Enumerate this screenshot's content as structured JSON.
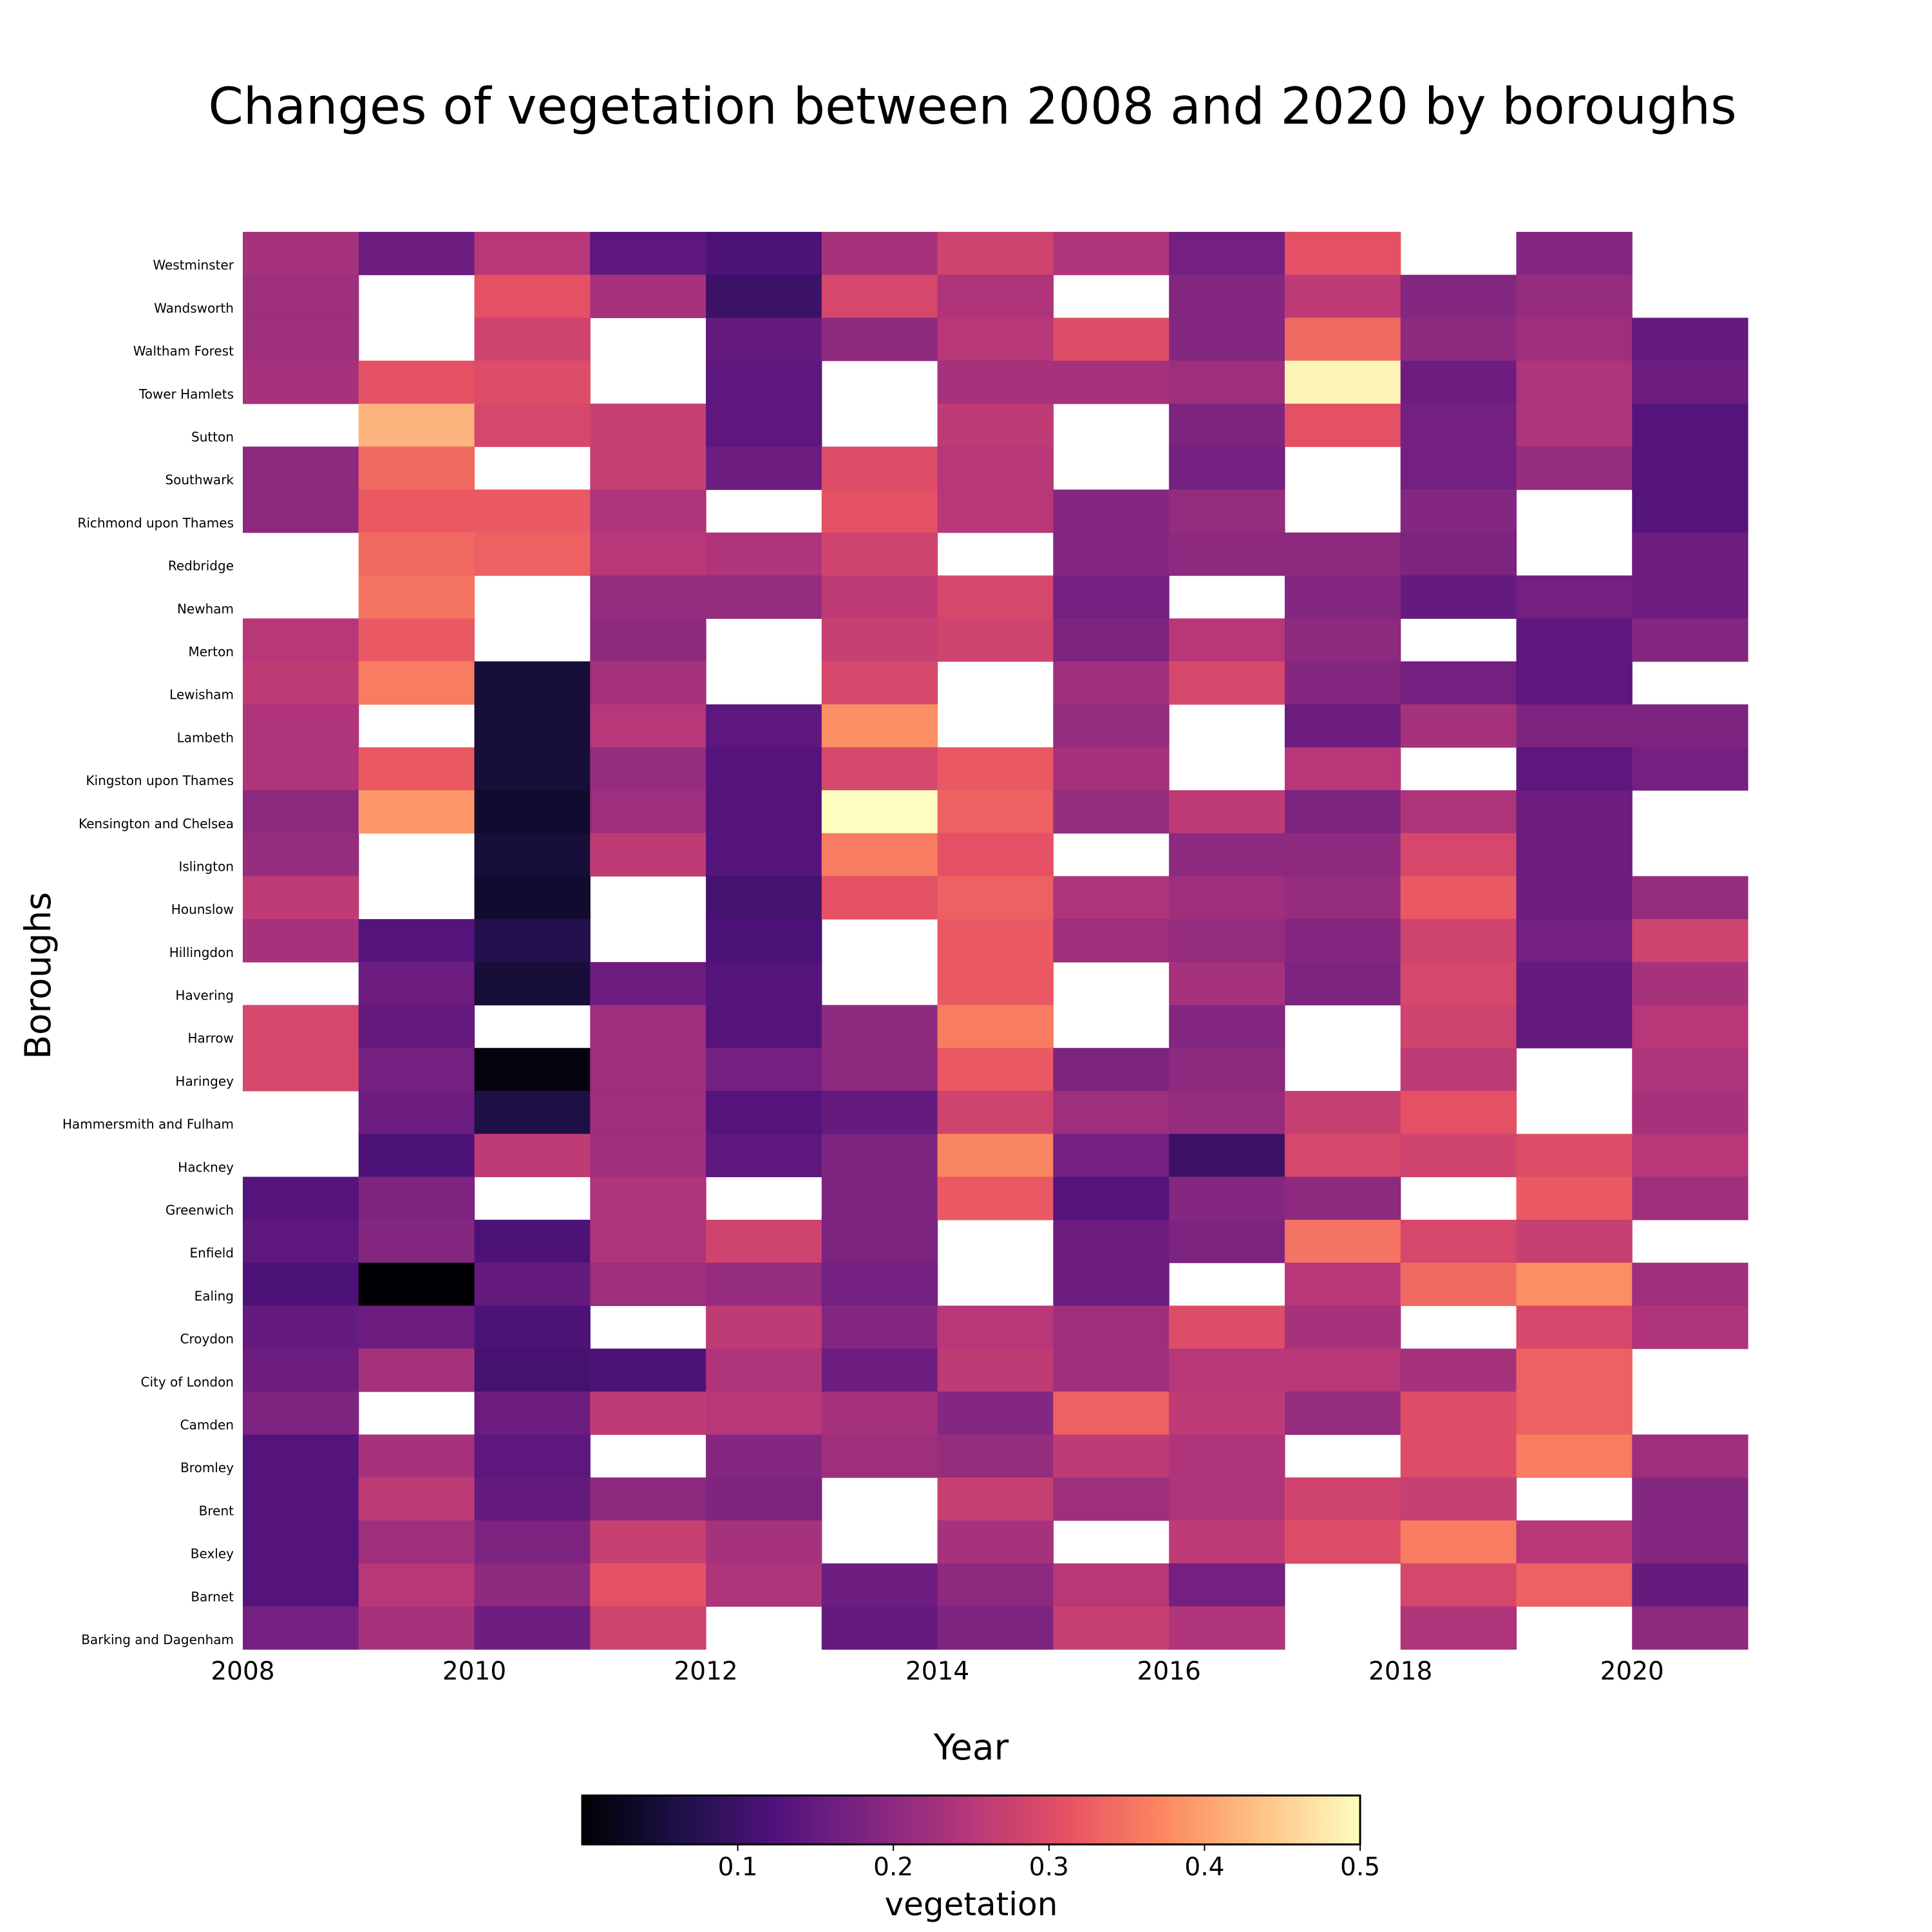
{
  "chart_data": {
    "type": "heatmap",
    "title": "Changes of vegetation between 2008 and 2020 by boroughs",
    "xlabel": "Year",
    "ylabel": "Boroughs",
    "x": [
      2008,
      2009,
      2010,
      2011,
      2012,
      2013,
      2014,
      2015,
      2016,
      2017,
      2018,
      2019,
      2020
    ],
    "x_ticks": [
      "2008",
      "2010",
      "2012",
      "2014",
      "2016",
      "2018",
      "2020"
    ],
    "rows": [
      "Westminster",
      "Wandsworth",
      "Waltham Forest",
      "Tower Hamlets",
      "Sutton",
      "Southwark",
      "Richmond upon Thames",
      "Redbridge",
      "Newham",
      "Merton",
      "Lewisham",
      "Lambeth",
      "Kingston upon Thames",
      "Kensington and Chelsea",
      "Islington",
      "Hounslow",
      "Hillingdon",
      "Havering",
      "Harrow",
      "Haringey",
      "Hammersmith and Fulham",
      "Hackney",
      "Greenwich",
      "Enfield",
      "Ealing",
      "Croydon",
      "City of London",
      "Camden",
      "Bromley",
      "Brent",
      "Bexley",
      "Barnet",
      "Barking and Dagenham"
    ],
    "values": [
      [
        0.23,
        0.16,
        0.25,
        0.14,
        0.12,
        0.23,
        0.28,
        0.24,
        0.17,
        0.31,
        null,
        0.19,
        null
      ],
      [
        0.22,
        null,
        0.31,
        0.23,
        0.1,
        0.29,
        0.24,
        null,
        0.19,
        0.26,
        0.19,
        0.21,
        null
      ],
      [
        0.22,
        null,
        0.28,
        null,
        0.15,
        0.2,
        0.25,
        0.3,
        0.19,
        0.34,
        0.2,
        0.22,
        0.15
      ],
      [
        0.23,
        0.31,
        0.3,
        null,
        0.14,
        null,
        0.23,
        0.23,
        0.22,
        0.49,
        0.16,
        0.24,
        0.16
      ],
      [
        null,
        0.42,
        0.29,
        0.27,
        0.14,
        null,
        0.26,
        null,
        0.18,
        0.31,
        0.17,
        0.24,
        0.13
      ],
      [
        0.2,
        0.34,
        null,
        0.27,
        0.16,
        0.3,
        0.25,
        null,
        0.17,
        null,
        0.17,
        0.21,
        0.13
      ],
      [
        0.2,
        0.32,
        0.32,
        0.24,
        null,
        0.31,
        0.25,
        0.19,
        0.21,
        null,
        0.19,
        null,
        0.13
      ],
      [
        null,
        0.34,
        0.33,
        0.25,
        0.24,
        0.28,
        null,
        0.19,
        0.2,
        0.2,
        0.18,
        null,
        0.16
      ],
      [
        null,
        0.35,
        null,
        0.21,
        0.21,
        0.26,
        0.29,
        0.17,
        null,
        0.19,
        0.15,
        0.17,
        0.16
      ],
      [
        0.25,
        0.32,
        null,
        0.2,
        null,
        0.27,
        0.28,
        0.18,
        0.25,
        0.2,
        null,
        0.14,
        0.19
      ],
      [
        0.26,
        0.36,
        0.05,
        0.23,
        null,
        0.29,
        null,
        0.22,
        0.29,
        0.19,
        0.17,
        0.14,
        null
      ],
      [
        0.24,
        null,
        0.05,
        0.25,
        0.14,
        0.38,
        null,
        0.21,
        null,
        0.16,
        0.23,
        0.18,
        0.18
      ],
      [
        0.24,
        0.32,
        0.05,
        0.21,
        0.13,
        0.29,
        0.32,
        0.23,
        null,
        0.25,
        null,
        0.14,
        0.17
      ],
      [
        0.2,
        0.39,
        0.04,
        0.22,
        0.13,
        0.5,
        0.33,
        0.21,
        0.26,
        0.18,
        0.24,
        0.16,
        null
      ],
      [
        0.21,
        null,
        0.05,
        0.26,
        0.13,
        0.36,
        0.31,
        null,
        0.2,
        0.2,
        0.29,
        0.16,
        null
      ],
      [
        0.26,
        null,
        0.04,
        null,
        0.11,
        0.31,
        0.33,
        0.24,
        0.22,
        0.21,
        0.32,
        0.16,
        0.21
      ],
      [
        0.23,
        0.13,
        0.07,
        null,
        0.12,
        null,
        0.32,
        0.22,
        0.21,
        0.19,
        0.28,
        0.17,
        0.28
      ],
      [
        null,
        0.16,
        0.05,
        0.16,
        0.13,
        null,
        0.32,
        null,
        0.23,
        0.18,
        0.29,
        0.15,
        0.23
      ],
      [
        0.29,
        0.15,
        null,
        0.22,
        0.13,
        0.2,
        0.36,
        null,
        0.19,
        null,
        0.28,
        0.15,
        0.25
      ],
      [
        0.29,
        0.17,
        0.01,
        0.22,
        0.17,
        0.2,
        0.32,
        0.18,
        0.2,
        null,
        0.26,
        null,
        0.24
      ],
      [
        null,
        0.16,
        0.06,
        0.22,
        0.13,
        0.15,
        0.28,
        0.22,
        0.21,
        0.27,
        0.31,
        null,
        0.23
      ],
      [
        null,
        0.12,
        0.26,
        0.22,
        0.14,
        0.18,
        0.37,
        0.17,
        0.1,
        0.29,
        0.28,
        0.3,
        0.25
      ],
      [
        0.13,
        0.18,
        null,
        0.24,
        null,
        0.18,
        0.32,
        0.13,
        0.19,
        0.2,
        null,
        0.32,
        0.22
      ],
      [
        0.14,
        0.19,
        0.12,
        0.24,
        0.28,
        0.18,
        null,
        0.16,
        0.18,
        0.35,
        0.29,
        0.27,
        null
      ],
      [
        0.12,
        0.0,
        0.15,
        0.22,
        0.21,
        0.17,
        null,
        0.16,
        null,
        0.25,
        0.34,
        0.38,
        0.22
      ],
      [
        0.15,
        0.16,
        0.12,
        null,
        0.26,
        0.19,
        0.25,
        0.22,
        0.3,
        0.23,
        null,
        0.29,
        0.24
      ],
      [
        0.16,
        0.23,
        0.11,
        0.12,
        0.24,
        0.16,
        0.26,
        0.22,
        0.25,
        0.25,
        0.23,
        0.33,
        null
      ],
      [
        0.18,
        null,
        0.16,
        0.26,
        0.25,
        0.23,
        0.19,
        0.33,
        0.26,
        0.21,
        0.3,
        0.33,
        null
      ],
      [
        0.13,
        0.23,
        0.14,
        null,
        0.19,
        0.22,
        0.21,
        0.26,
        0.24,
        null,
        0.3,
        0.36,
        0.22
      ],
      [
        0.13,
        0.26,
        0.15,
        0.2,
        0.18,
        null,
        0.27,
        0.22,
        0.24,
        0.28,
        0.27,
        null,
        0.19
      ],
      [
        0.13,
        0.22,
        0.18,
        0.27,
        0.23,
        null,
        0.23,
        null,
        0.26,
        0.3,
        0.36,
        0.25,
        0.19
      ],
      [
        0.13,
        0.25,
        0.2,
        0.31,
        0.24,
        0.16,
        0.2,
        0.25,
        0.17,
        null,
        0.29,
        0.33,
        0.15
      ],
      [
        0.17,
        0.23,
        0.16,
        0.28,
        null,
        0.15,
        0.18,
        0.27,
        0.24,
        null,
        0.24,
        null,
        0.2
      ]
    ],
    "colorbar": {
      "label": "vegetation",
      "min": 0.0,
      "max": 0.5,
      "ticks": [
        "0.1",
        "0.2",
        "0.3",
        "0.4",
        "0.5"
      ],
      "colormap": "magma",
      "stops": [
        "#000004",
        "#1d1147",
        "#51127c",
        "#822681",
        "#b73779",
        "#e75263",
        "#fc8961",
        "#fec488",
        "#fcfdbf"
      ]
    }
  }
}
